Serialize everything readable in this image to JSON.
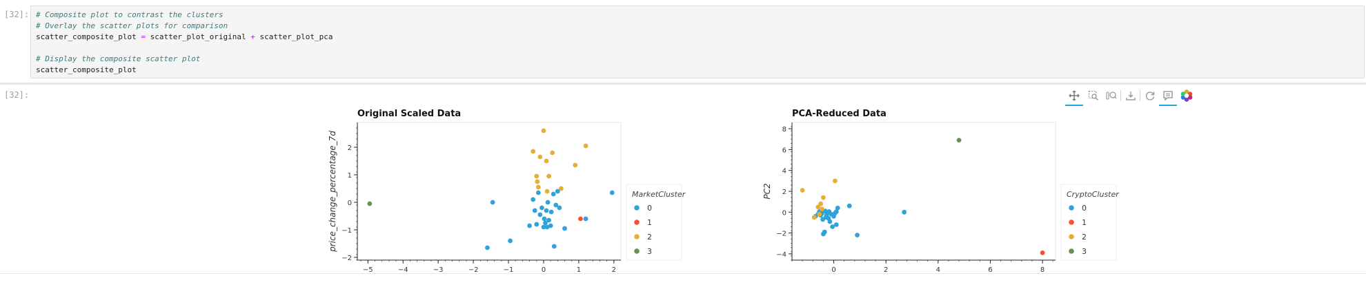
{
  "cells": {
    "input_prompt": "[32]:",
    "output_prompt": "[32]:",
    "code_lines": [
      {
        "type": "comment",
        "text": "# Composite plot to contrast the clusters"
      },
      {
        "type": "comment",
        "text": "# Overlay the scatter plots for comparison"
      },
      {
        "type": "code",
        "lhs": "scatter_composite_plot ",
        "op1": "=",
        "mid": " scatter_plot_original ",
        "op2": "+",
        "rhs": " scatter_plot_pca"
      },
      {
        "type": "blank",
        "text": ""
      },
      {
        "type": "comment",
        "text": "# Display the composite scatter plot"
      },
      {
        "type": "code_plain",
        "text": "scatter_composite_plot"
      }
    ]
  },
  "toolbar": {
    "tools": [
      "pan-icon",
      "box-zoom-icon",
      "wheel-zoom-icon",
      "save-icon",
      "reset-icon",
      "hover-icon",
      "bokeh-logo-icon"
    ]
  },
  "colors": {
    "cluster_0": "#30a2da",
    "cluster_1": "#fc4f30",
    "cluster_2": "#e5ae38",
    "cluster_3": "#6d904f"
  },
  "chart_data": [
    {
      "type": "scatter",
      "title": "Original Scaled Data",
      "ylabel": "price_change_percentage_7d",
      "xlabel": "",
      "xlim": [
        -5.3,
        2.2
      ],
      "ylim": [
        -2.1,
        2.9
      ],
      "x_ticks": [
        -5,
        -4,
        -3,
        -2,
        -1,
        0,
        1,
        2
      ],
      "x_tick_labels": [
        "−5",
        "−4",
        "−3",
        "−2",
        "−1",
        "0",
        "1",
        "2"
      ],
      "y_ticks": [
        -2,
        -1,
        0,
        1,
        2
      ],
      "y_tick_labels": [
        "−2",
        "−1",
        "0",
        "1",
        "2"
      ],
      "legend": {
        "title": "MarketCluster",
        "entries": [
          "0",
          "1",
          "2",
          "3"
        ],
        "placement": "right"
      },
      "series": [
        {
          "name": "0",
          "points": [
            [
              -1.6,
              -1.65
            ],
            [
              -1.45,
              0.0
            ],
            [
              -0.95,
              -1.4
            ],
            [
              -0.4,
              -0.85
            ],
            [
              -0.3,
              0.1
            ],
            [
              -0.25,
              -0.3
            ],
            [
              -0.2,
              -0.8
            ],
            [
              -0.15,
              0.35
            ],
            [
              -0.1,
              -0.45
            ],
            [
              -0.05,
              -0.2
            ],
            [
              0.0,
              -0.9
            ],
            [
              0.02,
              -0.6
            ],
            [
              0.05,
              -0.75
            ],
            [
              0.08,
              -0.3
            ],
            [
              0.1,
              -0.9
            ],
            [
              0.12,
              0.0
            ],
            [
              0.15,
              -0.65
            ],
            [
              0.2,
              -0.85
            ],
            [
              0.22,
              -0.35
            ],
            [
              0.28,
              0.3
            ],
            [
              0.3,
              -1.6
            ],
            [
              0.35,
              -0.1
            ],
            [
              0.4,
              0.4
            ],
            [
              0.45,
              -0.2
            ],
            [
              0.6,
              -0.95
            ],
            [
              1.2,
              -0.6
            ],
            [
              1.95,
              0.35
            ]
          ]
        },
        {
          "name": "1",
          "points": [
            [
              1.05,
              -0.6
            ]
          ]
        },
        {
          "name": "2",
          "points": [
            [
              -0.3,
              1.85
            ],
            [
              -0.2,
              0.95
            ],
            [
              -0.18,
              0.75
            ],
            [
              -0.15,
              0.55
            ],
            [
              -0.1,
              1.65
            ],
            [
              0.0,
              2.6
            ],
            [
              0.08,
              1.5
            ],
            [
              0.1,
              0.4
            ],
            [
              0.15,
              0.95
            ],
            [
              0.25,
              1.8
            ],
            [
              0.5,
              0.5
            ],
            [
              0.9,
              1.35
            ],
            [
              1.2,
              2.05
            ]
          ]
        },
        {
          "name": "3",
          "points": [
            [
              -4.95,
              -0.05
            ]
          ]
        }
      ]
    },
    {
      "type": "scatter",
      "title": "PCA-Reduced Data",
      "ylabel": "PC2",
      "xlabel": "",
      "xlim": [
        -1.6,
        8.5
      ],
      "ylim": [
        -4.6,
        8.6
      ],
      "x_ticks": [
        0,
        2,
        4,
        6,
        8
      ],
      "x_tick_labels": [
        "0",
        "2",
        "4",
        "6",
        "8"
      ],
      "y_ticks": [
        -4,
        -2,
        0,
        2,
        4,
        6,
        8
      ],
      "y_tick_labels": [
        "−4",
        "−2",
        "0",
        "2",
        "4",
        "6",
        "8"
      ],
      "legend": {
        "title": "CryptoCluster",
        "entries": [
          "0",
          "1",
          "2",
          "3"
        ],
        "placement": "right"
      },
      "series": [
        {
          "name": "0",
          "points": [
            [
              -0.7,
              -0.4
            ],
            [
              -0.6,
              -0.2
            ],
            [
              -0.55,
              0.05
            ],
            [
              -0.5,
              -0.3
            ],
            [
              -0.45,
              -0.1
            ],
            [
              -0.42,
              -0.7
            ],
            [
              -0.4,
              -2.1
            ],
            [
              -0.35,
              -1.9
            ],
            [
              -0.32,
              0.1
            ],
            [
              -0.3,
              -0.5
            ],
            [
              -0.28,
              -0.3
            ],
            [
              -0.25,
              -0.1
            ],
            [
              -0.2,
              -0.6
            ],
            [
              -0.18,
              0.05
            ],
            [
              -0.15,
              -0.9
            ],
            [
              -0.1,
              -0.2
            ],
            [
              -0.05,
              -1.4
            ],
            [
              0.0,
              -0.4
            ],
            [
              0.05,
              -0.1
            ],
            [
              0.1,
              0.05
            ],
            [
              0.1,
              -1.2
            ],
            [
              0.15,
              0.4
            ],
            [
              0.6,
              0.6
            ],
            [
              0.9,
              -2.2
            ],
            [
              2.7,
              0.0
            ]
          ]
        },
        {
          "name": "1",
          "points": [
            [
              8.0,
              -3.9
            ]
          ]
        },
        {
          "name": "2",
          "points": [
            [
              -1.2,
              2.1
            ],
            [
              -0.75,
              -0.5
            ],
            [
              -0.6,
              0.5
            ],
            [
              -0.55,
              -0.2
            ],
            [
              -0.5,
              0.8
            ],
            [
              -0.45,
              0.3
            ],
            [
              -0.4,
              1.4
            ],
            [
              0.05,
              3.0
            ]
          ]
        },
        {
          "name": "3",
          "points": [
            [
              4.8,
              6.9
            ]
          ]
        }
      ]
    }
  ]
}
